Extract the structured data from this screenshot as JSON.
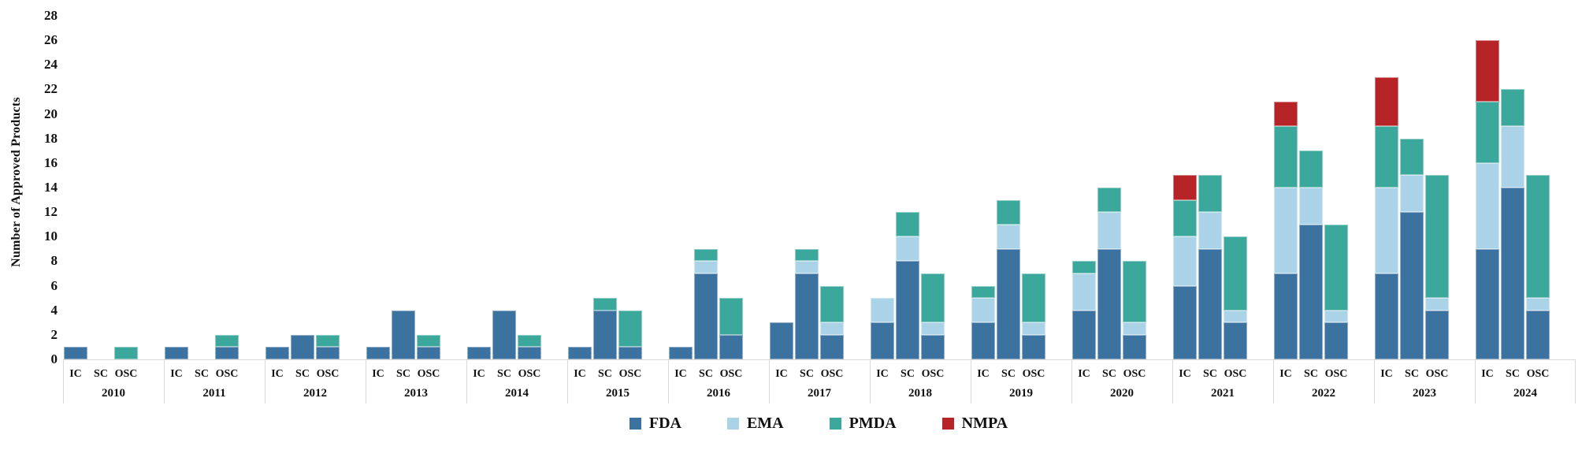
{
  "chart_data": {
    "type": "bar",
    "stacked": true,
    "title": "",
    "xlabel": "",
    "ylabel": "Number of Approved Products",
    "ylim": [
      0,
      28
    ],
    "ytick_step": 2,
    "grid": false,
    "legend_position": "bottom",
    "legend_entries": [
      "FDA",
      "EMA",
      "PMDA",
      "NMPA"
    ],
    "series_colors": {
      "FDA": "#3b72a0",
      "EMA": "#abd3e8",
      "PMDA": "#3ba89b",
      "NMPA": "#b62428"
    },
    "axis_color": "#d9d9d9",
    "categories_per_year": [
      "IC",
      "SC",
      "OSC"
    ],
    "segment_order": [
      "FDA",
      "EMA",
      "PMDA",
      "NMPA"
    ],
    "years": [
      {
        "year": "2010",
        "IC": [
          1,
          0,
          0,
          0
        ],
        "SC": [
          0,
          0,
          0,
          0
        ],
        "OSC": [
          0,
          0,
          1,
          0
        ]
      },
      {
        "year": "2011",
        "IC": [
          1,
          0,
          0,
          0
        ],
        "SC": [
          0,
          0,
          0,
          0
        ],
        "OSC": [
          1,
          0,
          1,
          0
        ]
      },
      {
        "year": "2012",
        "IC": [
          1,
          0,
          0,
          0
        ],
        "SC": [
          2,
          0,
          0,
          0
        ],
        "OSC": [
          1,
          0,
          1,
          0
        ]
      },
      {
        "year": "2013",
        "IC": [
          1,
          0,
          0,
          0
        ],
        "SC": [
          4,
          0,
          0,
          0
        ],
        "OSC": [
          1,
          0,
          1,
          0
        ]
      },
      {
        "year": "2014",
        "IC": [
          1,
          0,
          0,
          0
        ],
        "SC": [
          4,
          0,
          0,
          0
        ],
        "OSC": [
          1,
          0,
          1,
          0
        ]
      },
      {
        "year": "2015",
        "IC": [
          1,
          0,
          0,
          0
        ],
        "SC": [
          4,
          0,
          1,
          0
        ],
        "OSC": [
          1,
          0,
          3,
          0
        ]
      },
      {
        "year": "2016",
        "IC": [
          1,
          0,
          0,
          0
        ],
        "SC": [
          7,
          1,
          1,
          0
        ],
        "OSC": [
          2,
          0,
          3,
          0
        ]
      },
      {
        "year": "2017",
        "IC": [
          3,
          0,
          0,
          0
        ],
        "SC": [
          7,
          1,
          1,
          0
        ],
        "OSC": [
          2,
          1,
          3,
          0
        ]
      },
      {
        "year": "2018",
        "IC": [
          3,
          2,
          0,
          0
        ],
        "SC": [
          8,
          2,
          2,
          0
        ],
        "OSC": [
          2,
          1,
          4,
          0
        ]
      },
      {
        "year": "2019",
        "IC": [
          3,
          2,
          1,
          0
        ],
        "SC": [
          9,
          2,
          2,
          0
        ],
        "OSC": [
          2,
          1,
          4,
          0
        ]
      },
      {
        "year": "2020",
        "IC": [
          4,
          3,
          1,
          0
        ],
        "SC": [
          9,
          3,
          2,
          0
        ],
        "OSC": [
          2,
          1,
          5,
          0
        ]
      },
      {
        "year": "2021",
        "IC": [
          6,
          4,
          3,
          2
        ],
        "SC": [
          9,
          3,
          3,
          0
        ],
        "OSC": [
          3,
          1,
          6,
          0
        ]
      },
      {
        "year": "2022",
        "IC": [
          7,
          7,
          5,
          2
        ],
        "SC": [
          11,
          3,
          3,
          0
        ],
        "OSC": [
          3,
          1,
          7,
          0
        ]
      },
      {
        "year": "2023",
        "IC": [
          7,
          7,
          5,
          4
        ],
        "SC": [
          12,
          3,
          3,
          0
        ],
        "OSC": [
          4,
          1,
          10,
          0
        ]
      },
      {
        "year": "2024",
        "IC": [
          9,
          7,
          5,
          5
        ],
        "SC": [
          14,
          5,
          3,
          0
        ],
        "OSC": [
          4,
          1,
          10,
          0
        ]
      }
    ]
  }
}
